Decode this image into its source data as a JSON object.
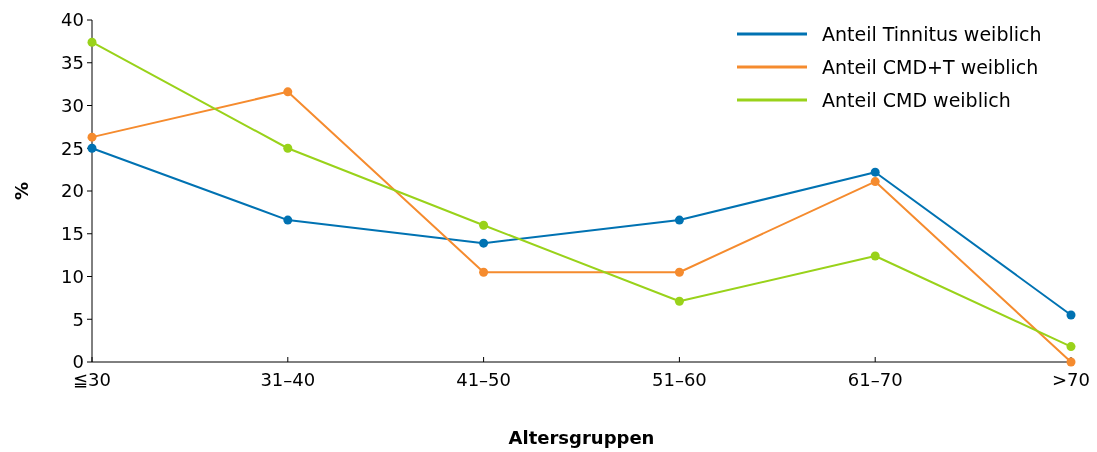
{
  "chart_data": {
    "type": "line",
    "xlabel": "Altersgruppen",
    "ylabel": "%",
    "categories": [
      "≦30",
      "31–40",
      "41–50",
      "51–60",
      "61–70",
      ">70"
    ],
    "series": [
      {
        "name": "Anteil Tinnitus weiblich",
        "color": "#0072b2",
        "values": [
          25,
          16.6,
          13.9,
          16.6,
          22.2,
          5.5
        ]
      },
      {
        "name": "Anteil CMD+T weiblich",
        "color": "#f58b2e",
        "values": [
          26.3,
          31.6,
          10.5,
          10.5,
          21.1,
          0
        ]
      },
      {
        "name": "Anteil CMD weiblich",
        "color": "#99d21a",
        "values": [
          37.4,
          25,
          16,
          7.1,
          12.4,
          1.8
        ]
      }
    ],
    "ylim": [
      0,
      40
    ],
    "yticks": [
      0,
      5,
      10,
      15,
      20,
      25,
      30,
      35,
      40
    ],
    "marker": "circle",
    "legend": "top right",
    "grid": false
  }
}
